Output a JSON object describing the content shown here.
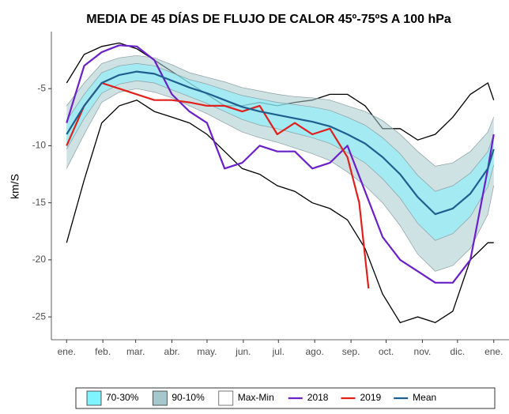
{
  "chart_data": {
    "type": "band-line",
    "title": "MEDIA DE 45 DÍAS DE FLUJO DE CALOR 45º-75ºS A 100 hPa",
    "y_label": "km/S",
    "x": [
      0,
      15,
      30,
      45,
      60,
      75,
      90,
      105,
      120,
      135,
      150,
      165,
      180,
      195,
      210,
      225,
      240,
      255,
      270,
      285,
      300,
      315,
      330,
      345,
      360,
      365
    ],
    "xlim": [
      -13,
      378
    ],
    "xticks": [
      {
        "value": 0,
        "label": "ene."
      },
      {
        "value": 31,
        "label": "feb."
      },
      {
        "value": 59,
        "label": "mar."
      },
      {
        "value": 90,
        "label": "abr."
      },
      {
        "value": 120,
        "label": "may."
      },
      {
        "value": 151,
        "label": "jun."
      },
      {
        "value": 181,
        "label": "jul."
      },
      {
        "value": 212,
        "label": "ago."
      },
      {
        "value": 243,
        "label": "sep."
      },
      {
        "value": 273,
        "label": "oct."
      },
      {
        "value": 304,
        "label": "nov."
      },
      {
        "value": 334,
        "label": "dic."
      },
      {
        "value": 365,
        "label": "ene."
      }
    ],
    "ylim": [
      -27,
      0
    ],
    "yticks": [
      -5,
      -10,
      -15,
      -20,
      -25
    ],
    "legend": "bottom",
    "bands": [
      {
        "name": "Max-Min",
        "color": "#ffffff",
        "edge_color": "#000000",
        "upper": [
          -4.5,
          -2,
          -1.3,
          -1,
          -1.5,
          -2.5,
          -3.5,
          -4.5,
          -5.5,
          -6.5,
          -6.5,
          -6.2,
          -6.5,
          -6.2,
          -6,
          -5.5,
          -5.5,
          -6.5,
          -8.5,
          -8.5,
          -9.5,
          -9,
          -7.5,
          -5.5,
          -4.5,
          -6
        ],
        "lower": [
          -18.5,
          -13,
          -8,
          -6.5,
          -6,
          -7,
          -7.5,
          -8,
          -9,
          -10.5,
          -12,
          -12.5,
          -13.5,
          -14,
          -15,
          -15.5,
          -16.5,
          -19,
          -23,
          -25.5,
          -25,
          -25.5,
          -24.5,
          -20,
          -18.5,
          -18.5
        ]
      },
      {
        "name": "90-10%",
        "color": "#a6c8cc",
        "edge_color": "#8a9ea3",
        "upper": [
          -6.5,
          -4.5,
          -2.8,
          -2.3,
          -2.1,
          -2.3,
          -2.9,
          -3.6,
          -4,
          -4.4,
          -4.9,
          -5.2,
          -5.5,
          -5.7,
          -5.8,
          -6,
          -6.5,
          -7,
          -7.8,
          -9,
          -10.5,
          -11.8,
          -11.5,
          -10.5,
          -8.8,
          -7.5
        ],
        "lower": [
          -12,
          -9,
          -6.2,
          -5.3,
          -5,
          -5.3,
          -5.8,
          -6.5,
          -7.2,
          -8,
          -8.8,
          -9.3,
          -9.7,
          -10.2,
          -10.7,
          -11.3,
          -12.3,
          -13.5,
          -15,
          -17,
          -19.5,
          -21,
          -20.5,
          -19,
          -16,
          -13.5
        ]
      },
      {
        "name": "70-30%",
        "color": "#7ff3ff",
        "edge_color": "#8a9ea3",
        "upper": [
          -7.8,
          -5.5,
          -3.6,
          -3,
          -2.8,
          -3,
          -3.6,
          -4.2,
          -4.6,
          -5.1,
          -5.6,
          -5.9,
          -6.2,
          -6.4,
          -6.6,
          -6.9,
          -7.5,
          -8.2,
          -9.3,
          -10.7,
          -12.6,
          -14,
          -13.5,
          -12.4,
          -10.5,
          -9
        ],
        "lower": [
          -10.3,
          -7.6,
          -5.4,
          -4.6,
          -4.3,
          -4.5,
          -5.1,
          -5.7,
          -6.3,
          -7,
          -7.7,
          -8.2,
          -8.5,
          -8.9,
          -9.3,
          -9.8,
          -10.6,
          -11.5,
          -12.9,
          -14.6,
          -16.8,
          -18.3,
          -17.7,
          -16.2,
          -13.6,
          -11.7
        ]
      }
    ],
    "series": [
      {
        "name": "2018",
        "color": "#6a1fc8",
        "values": [
          -8,
          -3,
          -1.8,
          -1.2,
          -1.3,
          -2.5,
          -5.5,
          -7,
          -8,
          -12,
          -11.5,
          -10,
          -10.5,
          -10.5,
          -12,
          -11.5,
          -10,
          -14,
          -18,
          -20,
          -21,
          -22,
          -22,
          -20,
          -12,
          -9
        ]
      },
      {
        "name": "2019",
        "color": "#e0201c",
        "x": [
          0,
          15,
          30,
          45,
          60,
          75,
          90,
          105,
          120,
          135,
          150,
          165,
          180,
          195,
          210,
          225,
          240,
          250,
          258
        ],
        "values": [
          -10,
          -6.5,
          -4.5,
          -5,
          -5.5,
          -6,
          -6,
          -6.2,
          -6.5,
          -6.5,
          -7,
          -6.5,
          -9,
          -8,
          -9,
          -8.5,
          -11,
          -15,
          -22.5
        ]
      },
      {
        "name": "Mean",
        "color": "#1f5f8f",
        "values": [
          -9,
          -6.5,
          -4.5,
          -3.8,
          -3.5,
          -3.7,
          -4.3,
          -4.9,
          -5.4,
          -6,
          -6.6,
          -7,
          -7.3,
          -7.6,
          -7.9,
          -8.3,
          -9,
          -9.8,
          -11,
          -12.5,
          -14.5,
          -16,
          -15.5,
          -14.2,
          -12,
          -10.3
        ]
      }
    ]
  }
}
